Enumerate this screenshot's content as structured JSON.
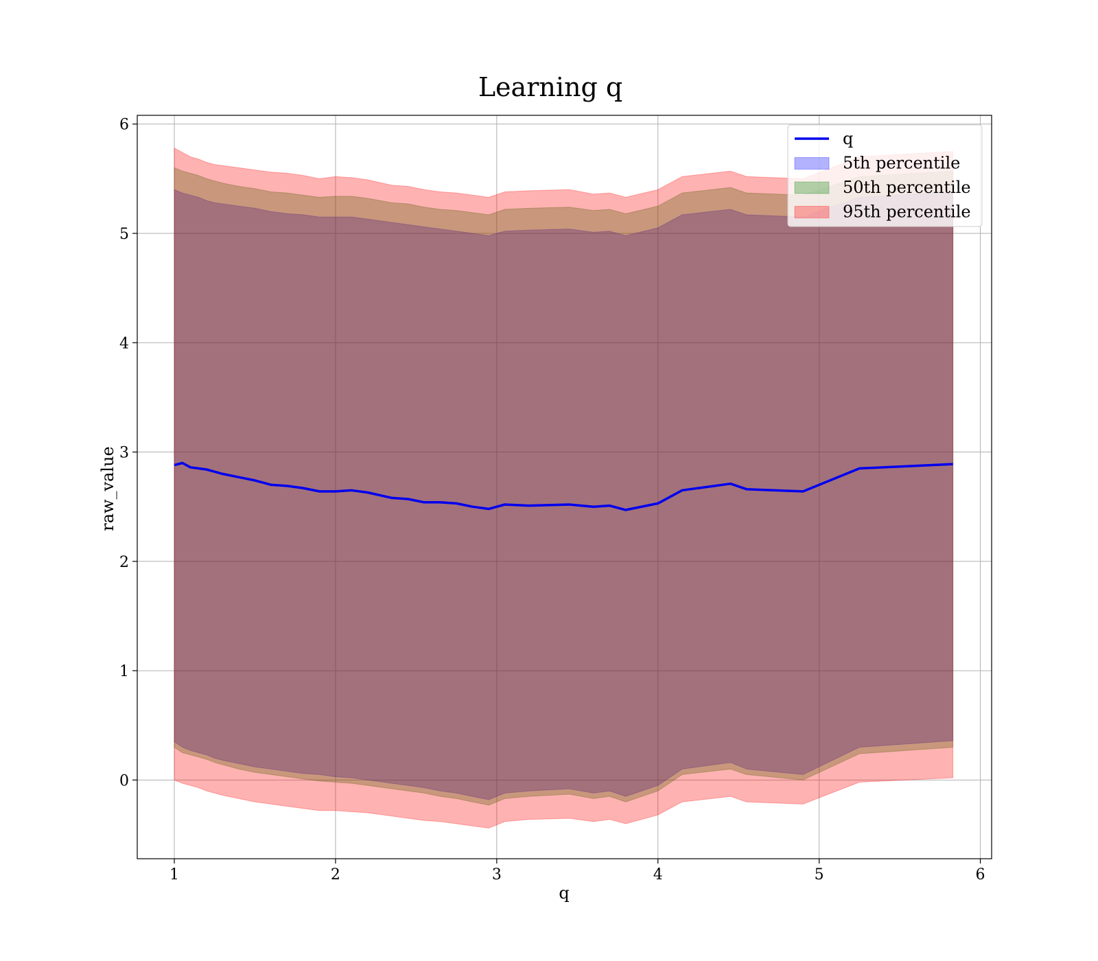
{
  "chart_data": {
    "type": "line",
    "title": "Learning q",
    "xlabel": "q",
    "ylabel": "raw_value",
    "xlim": [
      0.77,
      6.07
    ],
    "ylim": [
      -0.72,
      6.08
    ],
    "xticks": [
      1,
      2,
      3,
      4,
      5,
      6
    ],
    "yticks": [
      0,
      1,
      2,
      3,
      4,
      5,
      6
    ],
    "grid": true,
    "legend_position": "top-right",
    "colors": {
      "line": "#0000ee",
      "band_5": "#0000ff",
      "band_50": "#008000",
      "band_95": "#ff0000",
      "grid": "#b0b0b0"
    },
    "legend": [
      {
        "label": "q",
        "kind": "line",
        "color": "#0000ee"
      },
      {
        "label": "5th percentile",
        "kind": "band",
        "color": "#0000ff"
      },
      {
        "label": "50th percentile",
        "kind": "band",
        "color": "#008000"
      },
      {
        "label": "95th percentile",
        "kind": "band",
        "color": "#ff0000"
      }
    ],
    "x": [
      1.0,
      1.05,
      1.1,
      1.15,
      1.2,
      1.25,
      1.3,
      1.4,
      1.5,
      1.6,
      1.7,
      1.8,
      1.9,
      2.0,
      2.1,
      2.2,
      2.35,
      2.45,
      2.55,
      2.65,
      2.75,
      2.85,
      2.95,
      3.05,
      3.2,
      3.45,
      3.6,
      3.7,
      3.8,
      4.0,
      4.15,
      4.45,
      4.55,
      4.9,
      5.25,
      5.83
    ],
    "series": [
      {
        "name": "q",
        "values": [
          2.88,
          2.9,
          2.86,
          2.85,
          2.84,
          2.82,
          2.8,
          2.77,
          2.74,
          2.7,
          2.69,
          2.67,
          2.64,
          2.64,
          2.65,
          2.63,
          2.58,
          2.57,
          2.54,
          2.54,
          2.53,
          2.5,
          2.48,
          2.52,
          2.51,
          2.52,
          2.5,
          2.51,
          2.47,
          2.53,
          2.65,
          2.71,
          2.66,
          2.64,
          2.85,
          2.89
        ]
      },
      {
        "name": "5th percentile",
        "lower": [
          0.35,
          0.3,
          0.27,
          0.25,
          0.23,
          0.2,
          0.18,
          0.15,
          0.12,
          0.1,
          0.08,
          0.06,
          0.05,
          0.03,
          0.02,
          0.0,
          -0.03,
          -0.05,
          -0.07,
          -0.1,
          -0.12,
          -0.15,
          -0.18,
          -0.12,
          -0.1,
          -0.08,
          -0.12,
          -0.1,
          -0.15,
          -0.05,
          0.1,
          0.16,
          0.1,
          0.05,
          0.3,
          0.36
        ],
        "upper": [
          5.4,
          5.37,
          5.35,
          5.33,
          5.3,
          5.28,
          5.27,
          5.25,
          5.23,
          5.2,
          5.18,
          5.17,
          5.15,
          5.15,
          5.15,
          5.13,
          5.1,
          5.08,
          5.06,
          5.04,
          5.02,
          5.0,
          4.98,
          5.02,
          5.03,
          5.04,
          5.01,
          5.02,
          4.98,
          5.05,
          5.17,
          5.22,
          5.17,
          5.15,
          5.33,
          5.38
        ]
      },
      {
        "name": "50th percentile",
        "lower": [
          0.3,
          0.25,
          0.23,
          0.21,
          0.19,
          0.16,
          0.14,
          0.1,
          0.07,
          0.05,
          0.03,
          0.01,
          -0.01,
          -0.02,
          -0.03,
          -0.05,
          -0.08,
          -0.1,
          -0.12,
          -0.15,
          -0.17,
          -0.2,
          -0.23,
          -0.17,
          -0.15,
          -0.13,
          -0.17,
          -0.15,
          -0.2,
          -0.1,
          0.05,
          0.1,
          0.05,
          0.0,
          0.24,
          0.3
        ],
        "upper": [
          5.6,
          5.57,
          5.55,
          5.53,
          5.5,
          5.48,
          5.46,
          5.43,
          5.41,
          5.38,
          5.37,
          5.35,
          5.33,
          5.34,
          5.34,
          5.32,
          5.28,
          5.27,
          5.24,
          5.22,
          5.21,
          5.19,
          5.17,
          5.22,
          5.23,
          5.24,
          5.21,
          5.22,
          5.18,
          5.25,
          5.37,
          5.42,
          5.37,
          5.35,
          5.52,
          5.57
        ]
      },
      {
        "name": "95th percentile",
        "lower": [
          0.0,
          -0.03,
          -0.05,
          -0.07,
          -0.1,
          -0.12,
          -0.14,
          -0.17,
          -0.2,
          -0.22,
          -0.24,
          -0.26,
          -0.28,
          -0.28,
          -0.29,
          -0.3,
          -0.33,
          -0.35,
          -0.37,
          -0.38,
          -0.4,
          -0.42,
          -0.44,
          -0.38,
          -0.36,
          -0.35,
          -0.38,
          -0.36,
          -0.4,
          -0.32,
          -0.2,
          -0.15,
          -0.2,
          -0.22,
          -0.02,
          0.02
        ],
        "upper": [
          5.78,
          5.74,
          5.7,
          5.68,
          5.65,
          5.63,
          5.62,
          5.6,
          5.58,
          5.56,
          5.55,
          5.53,
          5.5,
          5.52,
          5.51,
          5.49,
          5.44,
          5.43,
          5.4,
          5.38,
          5.37,
          5.35,
          5.33,
          5.38,
          5.39,
          5.4,
          5.36,
          5.37,
          5.33,
          5.4,
          5.52,
          5.57,
          5.52,
          5.5,
          5.7,
          5.75
        ]
      }
    ]
  }
}
